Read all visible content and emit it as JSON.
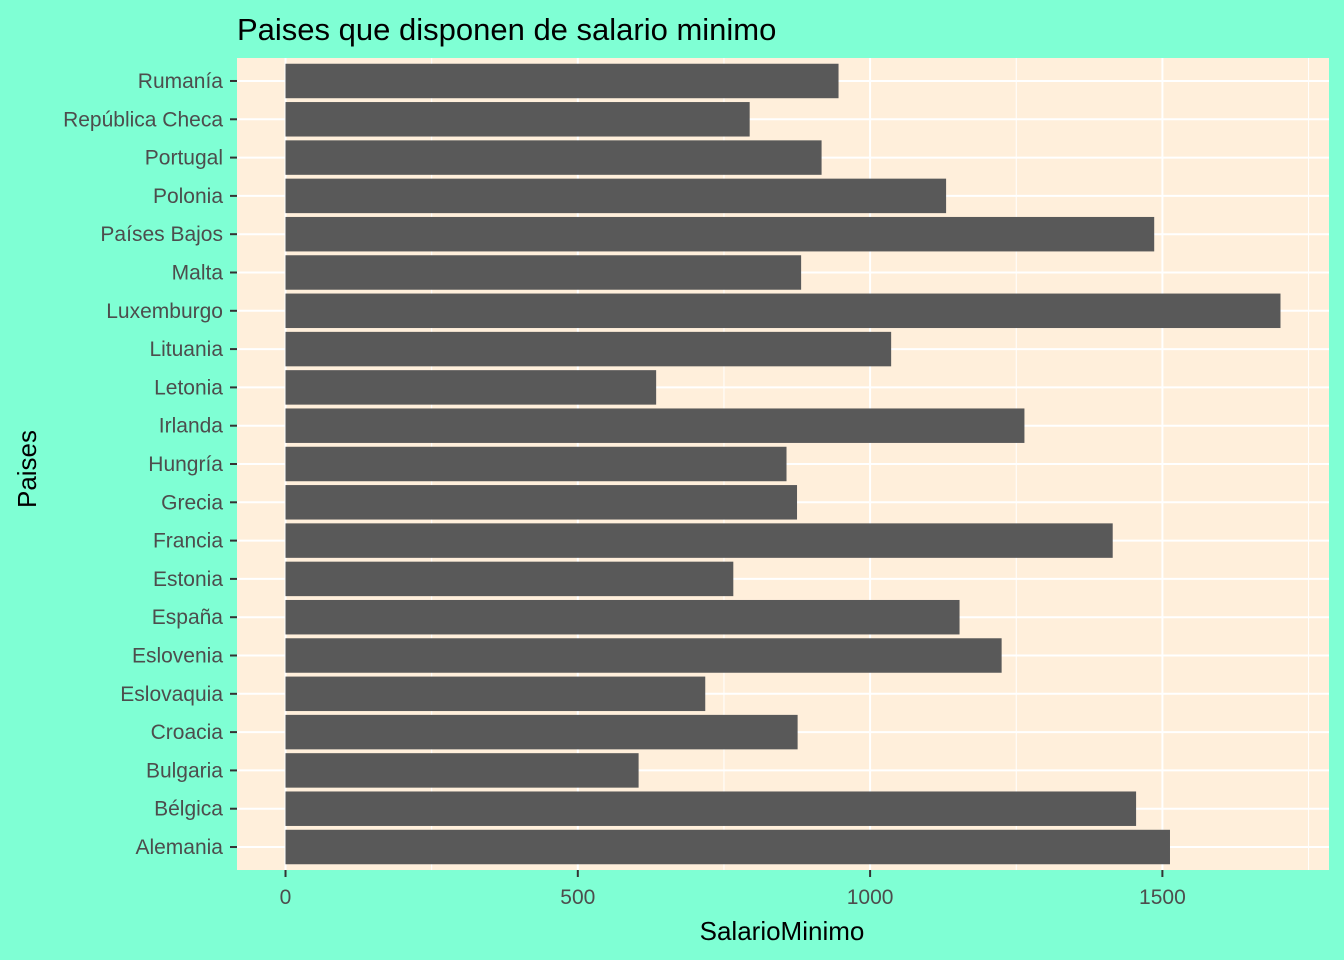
{
  "chart_data": {
    "type": "bar",
    "orientation": "horizontal",
    "title": "Paises que disponen de salario minimo",
    "xlabel": "SalarioMinimo",
    "ylabel": "Paises",
    "xlim": [
      -83,
      1785
    ],
    "xticks": [
      0,
      500,
      1000,
      1500
    ],
    "grid": true,
    "legend": "none",
    "categories": [
      "Rumanía",
      "República Checa",
      "Portugal",
      "Polonia",
      "Países Bajos",
      "Malta",
      "Luxemburgo",
      "Lituania",
      "Letonia",
      "Irlanda",
      "Hungría",
      "Grecia",
      "Francia",
      "Estonia",
      "España",
      "Eslovenia",
      "Eslovaquia",
      "Croacia",
      "Bulgaria",
      "Bélgica",
      "Alemania"
    ],
    "values": [
      946,
      794,
      917,
      1130,
      1486,
      882,
      1702,
      1036,
      634,
      1264,
      857,
      875,
      1415,
      766,
      1153,
      1225,
      718,
      876,
      604,
      1455,
      1513
    ]
  },
  "colors": {
    "background": "#7FFFD4",
    "panel": "#FFEFDB",
    "bar": "#595959",
    "grid": "#FFFFFF",
    "tick_text": "#4D4D4D",
    "title_text": "#000000"
  }
}
